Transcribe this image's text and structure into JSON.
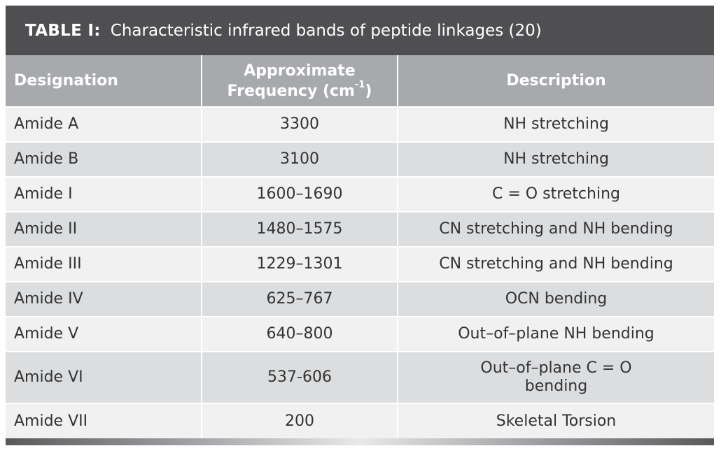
{
  "table": {
    "title_label": "TABLE I:",
    "title_text": "Characteristic infrared bands of peptide linkages (20)",
    "headers": {
      "designation": "Designation",
      "frequency_line1": "Approximate",
      "frequency_line2": "Frequency (cm",
      "frequency_sup": "-1",
      "frequency_close": ")",
      "description": "Description"
    },
    "rows": [
      {
        "designation": "Amide A",
        "frequency": "3300",
        "description": "NH stretching"
      },
      {
        "designation": "Amide B",
        "frequency": "3100",
        "description": "NH stretching"
      },
      {
        "designation": "Amide I",
        "frequency": "1600–1690",
        "description": "C = O stretching"
      },
      {
        "designation": "Amide II",
        "frequency": "1480–1575",
        "description": "CN stretching and NH bending"
      },
      {
        "designation": "Amide III",
        "frequency": "1229–1301",
        "description": "CN stretching and NH bending"
      },
      {
        "designation": "Amide IV",
        "frequency": "625–767",
        "description": "OCN bending"
      },
      {
        "designation": "Amide V",
        "frequency": "640–800",
        "description": "Out–of–plane NH bending"
      },
      {
        "designation": "Amide VI",
        "frequency": "537-606",
        "description": "Out–of–plane C = O bending",
        "description_line1": "Out–of–plane C = O",
        "description_line2": "bending"
      },
      {
        "designation": "Amide VII",
        "frequency": "200",
        "description": "Skeletal Torsion"
      }
    ],
    "colors": {
      "title_bar": "#4f4f51",
      "header_bg": "#a7a9ac",
      "row_light": "#f1f1f2",
      "row_dark": "#dcdddf",
      "text": "#333333"
    }
  }
}
